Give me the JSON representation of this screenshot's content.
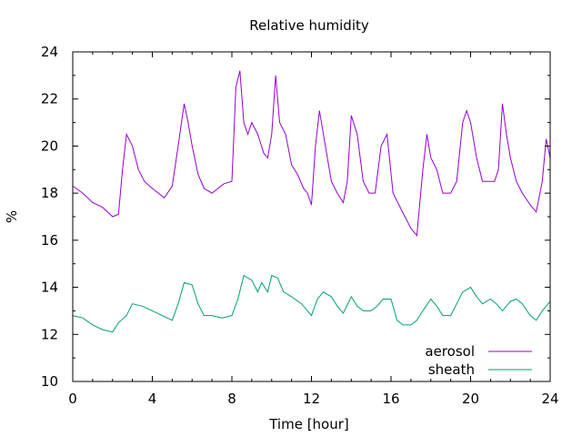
{
  "chart_data": {
    "type": "line",
    "title": "Relative humidity",
    "xlabel": "Time [hour]",
    "ylabel": "%",
    "xlim": [
      0,
      24
    ],
    "ylim": [
      10,
      24
    ],
    "x_ticks": [
      0,
      4,
      8,
      12,
      16,
      20,
      24
    ],
    "y_ticks": [
      10,
      12,
      14,
      16,
      18,
      20,
      22,
      24
    ],
    "grid": false,
    "legend": "bottom-right",
    "series": [
      {
        "name": "aerosol",
        "color": "#9400d3",
        "x": [
          0,
          0.5,
          1,
          1.5,
          2,
          2.3,
          2.5,
          2.7,
          3,
          3.3,
          3.6,
          4,
          4.3,
          4.6,
          5,
          5.3,
          5.6,
          5.8,
          6,
          6.3,
          6.6,
          7,
          7.3,
          7.6,
          8,
          8.2,
          8.4,
          8.6,
          8.8,
          9,
          9.3,
          9.6,
          9.8,
          10,
          10.2,
          10.4,
          10.7,
          11,
          11.3,
          11.6,
          11.8,
          12,
          12.2,
          12.4,
          12.7,
          13,
          13.3,
          13.6,
          13.8,
          14,
          14.3,
          14.6,
          14.9,
          15.2,
          15.5,
          15.8,
          16.1,
          16.4,
          16.7,
          17,
          17.3,
          17.6,
          17.8,
          18,
          18.3,
          18.6,
          19,
          19.3,
          19.6,
          19.8,
          20,
          20.3,
          20.6,
          21,
          21.2,
          21.4,
          21.6,
          21.8,
          22,
          22.3,
          22.6,
          23,
          23.3,
          23.6,
          23.8,
          24
        ],
        "y": [
          18.3,
          18.0,
          17.6,
          17.4,
          17.0,
          17.1,
          19.0,
          20.5,
          20.0,
          19.0,
          18.5,
          18.2,
          18.0,
          17.8,
          18.3,
          20.0,
          21.8,
          21.0,
          20.0,
          18.8,
          18.2,
          18.0,
          18.2,
          18.4,
          18.5,
          22.5,
          23.2,
          21.0,
          20.5,
          21.0,
          20.5,
          19.7,
          19.5,
          20.5,
          23.0,
          21.0,
          20.5,
          19.2,
          18.8,
          18.2,
          18.0,
          17.5,
          20.0,
          21.5,
          20.0,
          18.5,
          18.0,
          17.6,
          18.5,
          21.3,
          20.5,
          18.5,
          18.0,
          18.0,
          20.0,
          20.5,
          18.0,
          17.5,
          17.0,
          16.5,
          16.2,
          19.0,
          20.5,
          19.5,
          19.0,
          18.0,
          18.0,
          18.5,
          21.0,
          21.5,
          21.0,
          19.5,
          18.5,
          18.5,
          18.5,
          19.0,
          21.8,
          20.5,
          19.5,
          18.5,
          18.0,
          17.5,
          17.2,
          18.5,
          20.3,
          19.5
        ]
      },
      {
        "name": "sheath",
        "color": "#009e73",
        "x": [
          0,
          0.5,
          1,
          1.5,
          2,
          2.3,
          2.7,
          3,
          3.5,
          4,
          4.5,
          5,
          5.3,
          5.6,
          6,
          6.3,
          6.6,
          7,
          7.5,
          8,
          8.3,
          8.6,
          9,
          9.3,
          9.5,
          9.8,
          10,
          10.3,
          10.6,
          11,
          11.5,
          12,
          12.3,
          12.6,
          13,
          13.3,
          13.6,
          14,
          14.3,
          14.6,
          15,
          15.3,
          15.6,
          16,
          16.3,
          16.6,
          17,
          17.3,
          17.6,
          18,
          18.3,
          18.6,
          19,
          19.3,
          19.6,
          20,
          20.3,
          20.6,
          21,
          21.3,
          21.6,
          22,
          22.3,
          22.6,
          23,
          23.3,
          23.6,
          24
        ],
        "y": [
          12.8,
          12.7,
          12.4,
          12.2,
          12.1,
          12.5,
          12.8,
          13.3,
          13.2,
          13.0,
          12.8,
          12.6,
          13.3,
          14.2,
          14.1,
          13.3,
          12.8,
          12.8,
          12.7,
          12.8,
          13.5,
          14.5,
          14.3,
          13.8,
          14.2,
          13.8,
          14.5,
          14.4,
          13.8,
          13.6,
          13.3,
          12.8,
          13.5,
          13.8,
          13.6,
          13.2,
          12.9,
          13.6,
          13.2,
          13.0,
          13.0,
          13.2,
          13.5,
          13.5,
          12.6,
          12.4,
          12.4,
          12.6,
          13.0,
          13.5,
          13.2,
          12.8,
          12.8,
          13.3,
          13.8,
          14.0,
          13.6,
          13.3,
          13.5,
          13.3,
          13.0,
          13.4,
          13.5,
          13.3,
          12.8,
          12.6,
          13.0,
          13.4
        ]
      }
    ]
  }
}
